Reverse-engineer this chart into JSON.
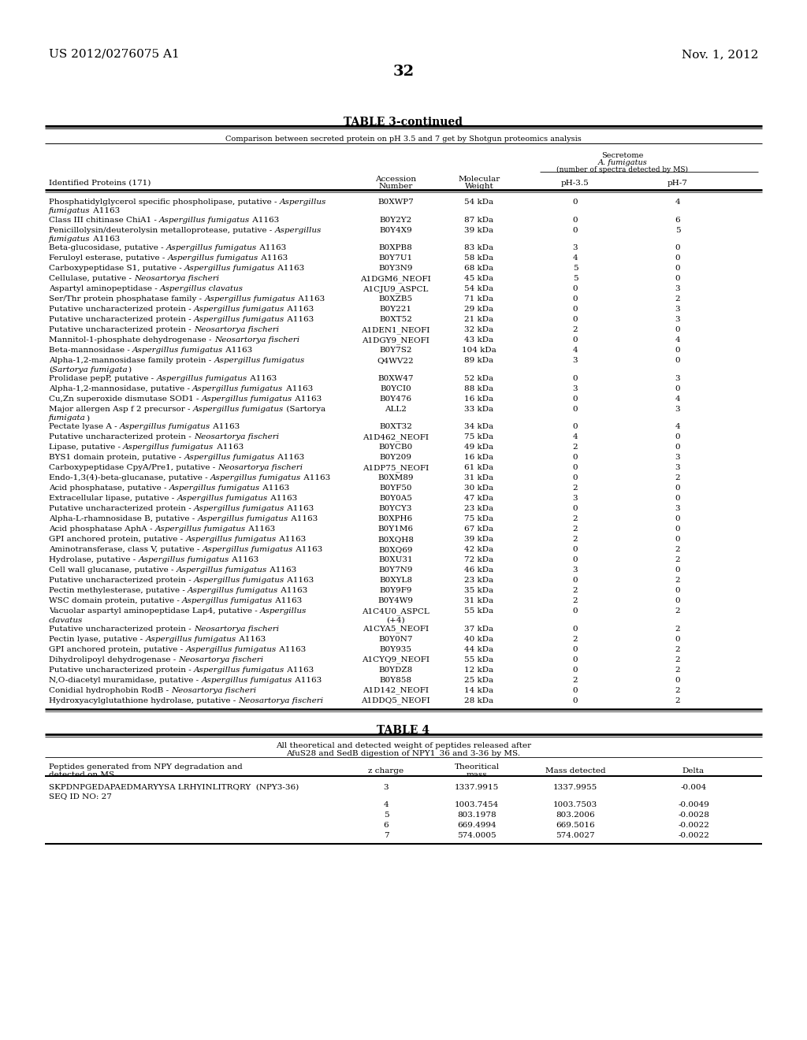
{
  "header_left": "US 2012/0276075 A1",
  "header_right": "Nov. 1, 2012",
  "page_number": "32",
  "table3_title": "TABLE 3-continued",
  "table3_subtitle": "Comparison between secreted protein on pH 3.5 and 7 get by Shotgun proteomics analysis",
  "table3_rows": [
    {
      "protein_normal": "Phosphatidylglycerol specific phospholipase, putative - ",
      "protein_italic": "Aspergillus",
      "protein_rest": " fumigatus",
      "line2_italic": "fumigatus",
      "line2_rest": " A1163",
      "wrap": true,
      "line1": "Phosphatidylglycerol specific phospholipase, putative - Aspergillus",
      "line2": "fumigatus A1163",
      "acc": "B0XWP7",
      "mw": "54 kDa",
      "ph35": "0",
      "ph7": "4"
    },
    {
      "line1": "Class III chitinase ChiA1 - Aspergillus fumigatus A1163",
      "line2": "",
      "acc": "B0Y2Y2",
      "mw": "87 kDa",
      "ph35": "0",
      "ph7": "6"
    },
    {
      "line1": "Penicillolysin/deuterolysin metalloprotease, putative - Aspergillus",
      "line2": "fumigatus A1163",
      "acc": "B0Y4X9",
      "mw": "39 kDa",
      "ph35": "0",
      "ph7": "5"
    },
    {
      "line1": "Beta-glucosidase, putative - Aspergillus fumigatus A1163",
      "line2": "",
      "acc": "B0XPB8",
      "mw": "83 kDa",
      "ph35": "3",
      "ph7": "0"
    },
    {
      "line1": "Feruloyl esterase, putative - Aspergillus fumigatus A1163",
      "line2": "",
      "acc": "B0Y7U1",
      "mw": "58 kDa",
      "ph35": "4",
      "ph7": "0"
    },
    {
      "line1": "Carboxypeptidase S1, putative - Aspergillus fumigatus A1163",
      "line2": "",
      "acc": "B0Y3N9",
      "mw": "68 kDa",
      "ph35": "5",
      "ph7": "0"
    },
    {
      "line1": "Cellulase, putative - Neosartorya fischeri",
      "line2": "",
      "acc": "A1DGM6_NEOFI",
      "mw": "45 kDa",
      "ph35": "5",
      "ph7": "0"
    },
    {
      "line1": "Aspartyl aminopeptidase - Aspergillus clavatus",
      "line2": "",
      "acc": "A1CJU9_ASPCL",
      "mw": "54 kDa",
      "ph35": "0",
      "ph7": "3"
    },
    {
      "line1": "Ser/Thr protein phosphatase family - Aspergillus fumigatus A1163",
      "line2": "",
      "acc": "B0XZB5",
      "mw": "71 kDa",
      "ph35": "0",
      "ph7": "2"
    },
    {
      "line1": "Putative uncharacterized protein - Aspergillus fumigatus A1163",
      "line2": "",
      "acc": "B0Y221",
      "mw": "29 kDa",
      "ph35": "0",
      "ph7": "3"
    },
    {
      "line1": "Putative uncharacterized protein - Aspergillus fumigatus A1163",
      "line2": "",
      "acc": "B0XT52",
      "mw": "21 kDa",
      "ph35": "0",
      "ph7": "3"
    },
    {
      "line1": "Putative uncharacterized protein - Neosartorya fischeri",
      "line2": "",
      "acc": "A1DEN1_NEOFI",
      "mw": "32 kDa",
      "ph35": "2",
      "ph7": "0"
    },
    {
      "line1": "Mannitol-1-phosphate dehydrogenase - Neosartorya fischeri",
      "line2": "",
      "acc": "A1DGY9_NEOFI",
      "mw": "43 kDa",
      "ph35": "0",
      "ph7": "4"
    },
    {
      "line1": "Beta-mannosidase - Aspergillus fumigatus A1163",
      "line2": "",
      "acc": "B0Y7S2",
      "mw": "104 kDa",
      "ph35": "4",
      "ph7": "0"
    },
    {
      "line1": "Alpha-1,2-mannosidase family protein - Aspergillus fumigatus",
      "line2": "(Sartorya fumigata)",
      "acc": "Q4WV22",
      "mw": "89 kDa",
      "ph35": "3",
      "ph7": "0"
    },
    {
      "line1": "Prolidase pepP, putative - Aspergillus fumigatus A1163",
      "line2": "",
      "acc": "B0XW47",
      "mw": "52 kDa",
      "ph35": "0",
      "ph7": "3"
    },
    {
      "line1": "Alpha-1,2-mannosidase, putative - Aspergillus fumigatus A1163",
      "line2": "",
      "acc": "B0YCI0",
      "mw": "88 kDa",
      "ph35": "3",
      "ph7": "0"
    },
    {
      "line1": "Cu,Zn superoxide dismutase SOD1 - Aspergillus fumigatus A1163",
      "line2": "",
      "acc": "B0Y476",
      "mw": "16 kDa",
      "ph35": "0",
      "ph7": "4"
    },
    {
      "line1": "Major allergen Asp f 2 precursor - Aspergillus fumigatus (Sartorya",
      "line2": "fumigata)",
      "acc": "ALL2",
      "mw": "33 kDa",
      "ph35": "0",
      "ph7": "3"
    },
    {
      "line1": "Pectate lyase A - Aspergillus fumigatus A1163",
      "line2": "",
      "acc": "B0XT32",
      "mw": "34 kDa",
      "ph35": "0",
      "ph7": "4"
    },
    {
      "line1": "Putative uncharacterized protein - Neosartorya fischeri",
      "line2": "",
      "acc": "A1D462_NEOFI",
      "mw": "75 kDa",
      "ph35": "4",
      "ph7": "0"
    },
    {
      "line1": "Lipase, putative - Aspergillus fumigatus A1163",
      "line2": "",
      "acc": "B0YCB0",
      "mw": "49 kDa",
      "ph35": "2",
      "ph7": "0"
    },
    {
      "line1": "BYS1 domain protein, putative - Aspergillus fumigatus A1163",
      "line2": "",
      "acc": "B0Y209",
      "mw": "16 kDa",
      "ph35": "0",
      "ph7": "3"
    },
    {
      "line1": "Carboxypeptidase CpyA/Pre1, putative - Neosartorya fischeri",
      "line2": "",
      "acc": "A1DP75_NEOFI",
      "mw": "61 kDa",
      "ph35": "0",
      "ph7": "3"
    },
    {
      "line1": "Endo-1,3(4)-beta-glucanase, putative - Aspergillus fumigatus A1163",
      "line2": "",
      "acc": "B0XM89",
      "mw": "31 kDa",
      "ph35": "0",
      "ph7": "2"
    },
    {
      "line1": "Acid phosphatase, putative - Aspergillus fumigatus A1163",
      "line2": "",
      "acc": "B0YF50",
      "mw": "30 kDa",
      "ph35": "2",
      "ph7": "0"
    },
    {
      "line1": "Extracellular lipase, putative - Aspergillus fumigatus A1163",
      "line2": "",
      "acc": "B0Y0A5",
      "mw": "47 kDa",
      "ph35": "3",
      "ph7": "0"
    },
    {
      "line1": "Putative uncharacterized protein - Aspergillus fumigatus A1163",
      "line2": "",
      "acc": "B0YCY3",
      "mw": "23 kDa",
      "ph35": "0",
      "ph7": "3"
    },
    {
      "line1": "Alpha-L-rhamnosidase B, putative - Aspergillus fumigatus A1163",
      "line2": "",
      "acc": "B0XPH6",
      "mw": "75 kDa",
      "ph35": "2",
      "ph7": "0"
    },
    {
      "line1": "Acid phosphatase AphA - Aspergillus fumigatus A1163",
      "line2": "",
      "acc": "B0Y1M6",
      "mw": "67 kDa",
      "ph35": "2",
      "ph7": "0"
    },
    {
      "line1": "GPI anchored protein, putative - Aspergillus fumigatus A1163",
      "line2": "",
      "acc": "B0XQH8",
      "mw": "39 kDa",
      "ph35": "2",
      "ph7": "0"
    },
    {
      "line1": "Aminotransferase, class V, putative - Aspergillus fumigatus A1163",
      "line2": "",
      "acc": "B0XQ69",
      "mw": "42 kDa",
      "ph35": "0",
      "ph7": "2"
    },
    {
      "line1": "Hydrolase, putative - Aspergillus fumigatus A1163",
      "line2": "",
      "acc": "B0XU31",
      "mw": "72 kDa",
      "ph35": "0",
      "ph7": "2"
    },
    {
      "line1": "Cell wall glucanase, putative - Aspergillus fumigatus A1163",
      "line2": "",
      "acc": "B0Y7N9",
      "mw": "46 kDa",
      "ph35": "3",
      "ph7": "0"
    },
    {
      "line1": "Putative uncharacterized protein - Aspergillus fumigatus A1163",
      "line2": "",
      "acc": "B0XYL8",
      "mw": "23 kDa",
      "ph35": "0",
      "ph7": "2"
    },
    {
      "line1": "Pectin methylesterase, putative - Aspergillus fumigatus A1163",
      "line2": "",
      "acc": "B0Y9F9",
      "mw": "35 kDa",
      "ph35": "2",
      "ph7": "0"
    },
    {
      "line1": "WSC domain protein, putative - Aspergillus fumigatus A1163",
      "line2": "",
      "acc": "B0Y4W9",
      "mw": "31 kDa",
      "ph35": "2",
      "ph7": "0"
    },
    {
      "line1": "Vacuolar aspartyl aminopeptidase Lap4, putative - Aspergillus",
      "line2": "clavatus",
      "acc": "A1C4U0_ASPCL",
      "acc2": "(+4)",
      "mw": "55 kDa",
      "ph35": "0",
      "ph7": "2"
    },
    {
      "line1": "Putative uncharacterized protein - Neosartorya fischeri",
      "line2": "",
      "acc": "A1CYA5_NEOFI",
      "mw": "37 kDa",
      "ph35": "0",
      "ph7": "2"
    },
    {
      "line1": "Pectin lyase, putative - Aspergillus fumigatus A1163",
      "line2": "",
      "acc": "B0Y0N7",
      "mw": "40 kDa",
      "ph35": "2",
      "ph7": "0"
    },
    {
      "line1": "GPI anchored protein, putative - Aspergillus fumigatus A1163",
      "line2": "",
      "acc": "B0Y935",
      "mw": "44 kDa",
      "ph35": "0",
      "ph7": "2"
    },
    {
      "line1": "Dihydrolipoyl dehydrogenase - Neosartorya fischeri",
      "line2": "",
      "acc": "A1CYQ9_NEOFI",
      "mw": "55 kDa",
      "ph35": "0",
      "ph7": "2"
    },
    {
      "line1": "Putative uncharacterized protein - Aspergillus fumigatus A1163",
      "line2": "",
      "acc": "B0YDZ8",
      "mw": "12 kDa",
      "ph35": "0",
      "ph7": "2"
    },
    {
      "line1": "N,O-diacetyl muramidase, putative - Aspergillus fumigatus A1163",
      "line2": "",
      "acc": "B0Y858",
      "mw": "25 kDa",
      "ph35": "2",
      "ph7": "0"
    },
    {
      "line1": "Conidial hydrophobin RodB - Neosartorya fischeri",
      "line2": "",
      "acc": "A1D142_NEOFI",
      "mw": "14 kDa",
      "ph35": "0",
      "ph7": "2"
    },
    {
      "line1": "Hydroxyacylglutathione hydrolase, putative - Neosartorya fischeri",
      "line2": "",
      "acc": "A1DDQ5_NEOFI",
      "mw": "28 kDa",
      "ph35": "0",
      "ph7": "2"
    }
  ],
  "table4_rows_data": [
    [
      "SKPDNPGEDAPAEDMARYYSA LRHYINLITRQRY  (NPY3-36)",
      "SEQ ID NO: 27",
      "3",
      "1337.9915",
      "1337.9955",
      "-0.004"
    ],
    [
      "",
      "",
      "4",
      "1003.7454",
      "1003.7503",
      "-0.0049"
    ],
    [
      "",
      "",
      "5",
      "803.1978",
      "803.2006",
      "-0.0028"
    ],
    [
      "",
      "",
      "6",
      "669.4994",
      "669.5016",
      "-0.0022"
    ],
    [
      "",
      "",
      "7",
      "574.0005",
      "574.0027",
      "-0.0022"
    ]
  ]
}
